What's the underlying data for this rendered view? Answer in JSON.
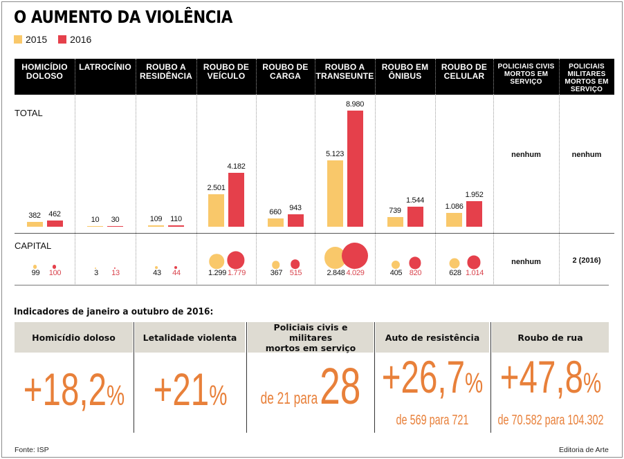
{
  "title": "O AUMENTO DA VIOLÊNCIA",
  "legend": [
    {
      "label": "2015",
      "color": "#f9c86a"
    },
    {
      "label": "2016",
      "color": "#e5404b"
    }
  ],
  "row_labels": {
    "total": "TOTAL",
    "capital": "CAPITAL"
  },
  "columns": [
    {
      "label": "HOMICÍDIO\nDOLOSO"
    },
    {
      "label": "LATROCÍNIO"
    },
    {
      "label": "ROUBO A\nRESIDÊNCIA"
    },
    {
      "label": "ROUBO DE\nVEÍCULO"
    },
    {
      "label": "ROUBO DE\nCARGA"
    },
    {
      "label": "ROUBO A\nTRANSEUNTE"
    },
    {
      "label": "ROUBO EM\nÔNIBUS"
    },
    {
      "label": "ROUBO DE\nCELULAR"
    },
    {
      "label": "POLICIAIS CIVIS\nMORTOS EM\nSERVIÇO"
    },
    {
      "label": "POLICIAIS\nMILITARES\nMORTOS EM\nSERVIÇO"
    }
  ],
  "chart_data": {
    "type": "bar",
    "title": "O AUMENTO DA VIOLÊNCIA",
    "categories": [
      "Homicídio doloso",
      "Latrocínio",
      "Roubo a residência",
      "Roubo de veículo",
      "Roubo de carga",
      "Roubo a transeunte",
      "Roubo em ônibus",
      "Roubo de celular",
      "Policiais civis mortos em serviço",
      "Policiais militares mortos em serviço"
    ],
    "total": {
      "series": [
        {
          "name": "2015",
          "values": [
            382,
            10,
            109,
            2501,
            660,
            5123,
            739,
            1086,
            null,
            null
          ],
          "labels": [
            "382",
            "10",
            "109",
            "2.501",
            "660",
            "5.123",
            "739",
            "1.086",
            null,
            null
          ]
        },
        {
          "name": "2016",
          "values": [
            462,
            30,
            110,
            4182,
            943,
            8980,
            1544,
            1952,
            null,
            null
          ],
          "labels": [
            "462",
            "30",
            "110",
            "4.182",
            "943",
            "8.980",
            "1.544",
            "1.952",
            null,
            null
          ]
        }
      ],
      "text_values": [
        null,
        null,
        null,
        null,
        null,
        null,
        null,
        null,
        "nenhum",
        "nenhum"
      ]
    },
    "capital": {
      "type": "bubble",
      "series": [
        {
          "name": "2015",
          "values": [
            99,
            3,
            43,
            1299,
            367,
            2848,
            405,
            628,
            null,
            null
          ],
          "labels": [
            "99",
            "3",
            "43",
            "1.299",
            "367",
            "2.848",
            "405",
            "628",
            null,
            null
          ]
        },
        {
          "name": "2016",
          "values": [
            100,
            13,
            44,
            1779,
            515,
            4029,
            820,
            1014,
            null,
            null
          ],
          "labels": [
            "100",
            "13",
            "44",
            "1.779",
            "515",
            "4.029",
            "820",
            "1.014",
            null,
            null
          ]
        }
      ],
      "text_values": [
        null,
        null,
        null,
        null,
        null,
        null,
        null,
        null,
        "nenhum",
        "2 (2016)"
      ]
    }
  },
  "indicators": {
    "title": "Indicadores de janeiro a outubro de 2016:",
    "items": [
      {
        "label": "Homicídio doloso",
        "value": "+18,2",
        "unit": "%",
        "sub": ""
      },
      {
        "label": "Letalidade violenta",
        "value": "+21",
        "unit": "%",
        "sub": ""
      },
      {
        "label": "Policiais civis e militares\nmortos em serviço",
        "prefix": "de 21 para",
        "value": "28",
        "unit": "",
        "sub": ""
      },
      {
        "label": "Auto de resistência",
        "value": "+26,7",
        "unit": "%",
        "sub": "de 569 para 721"
      },
      {
        "label": "Roubo de rua",
        "value": "+47,8",
        "unit": "%",
        "sub": "de 70.582 para 104.302"
      }
    ]
  },
  "footer": {
    "source": "Fonte: ISP",
    "credit": "Editoria de Arte"
  }
}
